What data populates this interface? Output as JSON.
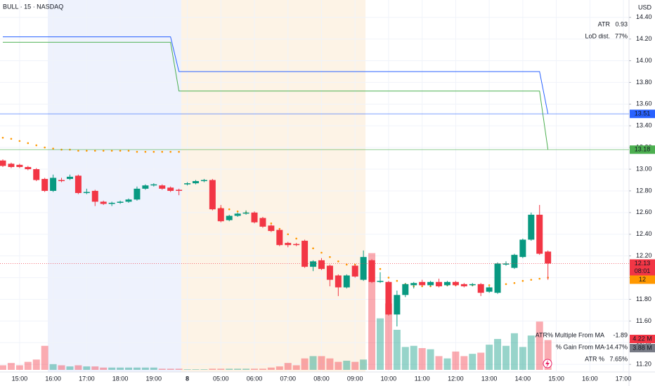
{
  "chart_data": {
    "type": "candlestick",
    "title": "BULL · 15 · NASDAQ",
    "currency": "USD",
    "categories": [
      null,
      null,
      "15:00",
      null,
      null,
      null,
      "16:00",
      null,
      null,
      null,
      "17:00",
      null,
      null,
      null,
      "18:00",
      null,
      null,
      null,
      "19:00",
      null,
      null,
      null,
      "8",
      null,
      null,
      null,
      "05:00",
      null,
      null,
      null,
      "06:00",
      null,
      null,
      null,
      "07:00",
      null,
      null,
      null,
      "08:00",
      null,
      null,
      null,
      "09:00",
      null,
      null,
      null,
      "10:00",
      null,
      null,
      null,
      "11:00",
      null,
      null,
      null,
      "12:00",
      null,
      null,
      null,
      "13:00",
      null,
      null,
      null,
      "14:00",
      null,
      null,
      null,
      "15:00",
      null,
      null,
      null,
      "16:00",
      null,
      null,
      null,
      "17:00"
    ],
    "open": [
      13.08,
      13.05,
      13.04,
      13.02,
      13.0,
      12.91,
      12.8,
      12.9,
      12.91,
      12.94,
      12.78,
      12.8,
      12.7,
      12.68,
      12.69,
      12.7,
      12.72,
      12.82,
      12.85,
      12.85,
      12.83,
      12.81,
      12.86,
      12.87,
      12.89,
      12.9,
      12.64,
      12.53,
      12.57,
      12.59,
      12.6,
      12.55,
      12.48,
      12.44,
      12.32,
      12.31,
      12.34,
      12.1,
      12.16,
      12.11,
      12.02,
      11.91,
      12.11,
      11.98,
      12.16,
      11.96,
      11.96,
      11.66,
      11.84,
      11.93,
      11.96,
      11.93,
      11.96,
      11.93,
      11.96,
      11.94,
      11.93,
      11.94,
      11.87,
      11.86,
      12.12,
      12.09,
      12.19,
      12.35,
      12.58,
      12.24,
      null,
      null,
      null,
      null,
      null,
      null,
      null,
      null,
      null
    ],
    "high": [
      13.09,
      13.06,
      13.05,
      13.03,
      13.01,
      12.92,
      12.95,
      12.92,
      12.95,
      12.95,
      12.82,
      12.81,
      12.71,
      12.7,
      12.71,
      12.73,
      12.84,
      12.86,
      12.87,
      12.86,
      12.84,
      12.82,
      12.88,
      12.9,
      12.91,
      12.91,
      12.67,
      12.58,
      12.6,
      12.62,
      12.61,
      12.56,
      12.49,
      12.45,
      12.33,
      12.32,
      12.35,
      12.16,
      12.18,
      12.12,
      12.03,
      12.03,
      12.12,
      12.25,
      12.17,
      12.05,
      11.97,
      11.88,
      11.95,
      11.96,
      11.98,
      11.97,
      11.99,
      11.97,
      11.97,
      11.95,
      11.95,
      11.95,
      11.92,
      12.14,
      12.15,
      12.22,
      12.36,
      12.6,
      12.67,
      12.25,
      null,
      null,
      null,
      null,
      null,
      null,
      null,
      null,
      null
    ],
    "low": [
      13.02,
      13.01,
      13.01,
      12.99,
      12.89,
      12.79,
      12.79,
      12.88,
      12.9,
      12.77,
      12.77,
      12.66,
      12.67,
      12.66,
      12.68,
      12.69,
      12.71,
      12.81,
      12.84,
      12.81,
      12.79,
      12.76,
      12.85,
      12.86,
      12.88,
      12.62,
      12.51,
      12.52,
      12.56,
      12.58,
      12.5,
      12.46,
      12.42,
      12.29,
      12.28,
      12.29,
      12.09,
      12.06,
      12.07,
      11.92,
      11.83,
      11.9,
      12.0,
      11.97,
      11.95,
      11.95,
      11.65,
      11.55,
      11.82,
      11.9,
      11.92,
      11.92,
      11.91,
      11.92,
      11.92,
      11.91,
      11.92,
      11.83,
      11.86,
      11.85,
      12.11,
      12.08,
      12.18,
      12.34,
      12.21,
      11.98,
      null,
      null,
      null,
      null,
      null,
      null,
      null,
      null,
      null
    ],
    "close": [
      13.03,
      13.02,
      13.02,
      13.0,
      12.9,
      12.8,
      12.92,
      12.89,
      12.93,
      12.78,
      12.79,
      12.7,
      12.68,
      12.69,
      12.7,
      12.72,
      12.82,
      12.85,
      12.86,
      12.82,
      12.8,
      12.8,
      12.87,
      12.89,
      12.9,
      12.63,
      12.52,
      12.57,
      12.59,
      12.6,
      12.51,
      12.47,
      12.43,
      12.3,
      12.3,
      12.3,
      12.1,
      12.15,
      12.08,
      11.98,
      11.91,
      12.02,
      12.01,
      12.19,
      11.96,
      11.97,
      11.66,
      11.84,
      11.94,
      11.95,
      11.93,
      11.96,
      11.92,
      11.96,
      11.93,
      11.92,
      11.94,
      11.86,
      11.91,
      12.13,
      12.13,
      12.21,
      12.35,
      12.58,
      12.22,
      12.13,
      null,
      null,
      null,
      null,
      null,
      null,
      null,
      null,
      null
    ],
    "volume": [
      0.4,
      0.6,
      0.4,
      0.7,
      0.9,
      2.1,
      0.5,
      0.4,
      0.3,
      0.4,
      0.3,
      0.3,
      0.2,
      0.2,
      0.2,
      0.2,
      0.2,
      0.2,
      0.2,
      0.1,
      0.1,
      0.1,
      0.05,
      0.05,
      0.05,
      0.1,
      0.1,
      0.1,
      0.1,
      0.1,
      0.1,
      0.1,
      0.2,
      0.3,
      0.6,
      0.4,
      1.0,
      1.2,
      1.2,
      1.0,
      0.7,
      0.8,
      0.7,
      0.9,
      10.2,
      4.5,
      5.8,
      3.5,
      2.0,
      2.1,
      1.9,
      1.8,
      1.2,
      1.0,
      1.6,
      1.2,
      1.4,
      1.5,
      2.2,
      2.7,
      2.1,
      3.2,
      2.0,
      3.0,
      4.22,
      2.6,
      null,
      null,
      null,
      null,
      null,
      null,
      null,
      null,
      null
    ],
    "volume_ylim": [
      0,
      32.5
    ],
    "up_color": "#089981",
    "down_color": "#f23645",
    "overlays": [
      {
        "style": "line",
        "color": "#2962ff",
        "values": [
          14.22,
          14.22,
          14.22,
          14.22,
          14.22,
          14.22,
          14.22,
          14.22,
          14.22,
          14.22,
          14.22,
          14.22,
          14.22,
          14.22,
          14.22,
          14.22,
          14.22,
          14.22,
          14.22,
          14.22,
          14.22,
          13.9,
          13.9,
          13.9,
          13.9,
          13.9,
          13.9,
          13.9,
          13.9,
          13.9,
          13.9,
          13.9,
          13.9,
          13.9,
          13.9,
          13.9,
          13.9,
          13.9,
          13.9,
          13.9,
          13.9,
          13.9,
          13.9,
          13.9,
          13.9,
          13.9,
          13.9,
          13.9,
          13.9,
          13.9,
          13.9,
          13.9,
          13.9,
          13.9,
          13.9,
          13.9,
          13.9,
          13.9,
          13.9,
          13.9,
          13.9,
          13.9,
          13.9,
          13.9,
          13.9,
          13.51,
          null,
          null,
          null,
          null,
          null,
          null,
          null,
          null,
          null
        ]
      },
      {
        "style": "line",
        "color": "#4caf50",
        "values": [
          14.17,
          14.17,
          14.17,
          14.17,
          14.17,
          14.17,
          14.17,
          14.17,
          14.17,
          14.17,
          14.17,
          14.17,
          14.17,
          14.17,
          14.17,
          14.17,
          14.17,
          14.17,
          14.17,
          14.17,
          14.17,
          13.72,
          13.72,
          13.72,
          13.72,
          13.72,
          13.72,
          13.72,
          13.72,
          13.72,
          13.72,
          13.72,
          13.72,
          13.72,
          13.72,
          13.72,
          13.72,
          13.72,
          13.72,
          13.72,
          13.72,
          13.72,
          13.72,
          13.72,
          13.72,
          13.72,
          13.72,
          13.72,
          13.72,
          13.72,
          13.72,
          13.72,
          13.72,
          13.72,
          13.72,
          13.72,
          13.72,
          13.72,
          13.72,
          13.72,
          13.72,
          13.72,
          13.72,
          13.72,
          13.72,
          13.18,
          null,
          null,
          null,
          null,
          null,
          null,
          null,
          null,
          null
        ]
      },
      {
        "style": "dots",
        "color": "#ff9800",
        "values": [
          13.29,
          13.28,
          13.26,
          13.24,
          13.22,
          13.2,
          13.19,
          13.18,
          13.18,
          13.17,
          13.17,
          13.17,
          13.17,
          13.17,
          13.17,
          13.17,
          13.16,
          13.16,
          13.16,
          13.16,
          13.16,
          13.16,
          null,
          null,
          null,
          12.66,
          12.64,
          12.63,
          12.61,
          12.6,
          12.56,
          12.53,
          12.5,
          12.45,
          12.4,
          12.36,
          12.3,
          12.27,
          12.23,
          12.19,
          12.15,
          12.12,
          12.12,
          12.11,
          12.1,
          12.08,
          12.0,
          11.97,
          11.94,
          11.92,
          11.92,
          11.92,
          11.93,
          11.93,
          11.93,
          11.93,
          11.93,
          11.93,
          11.93,
          11.94,
          11.94,
          11.95,
          11.97,
          11.98,
          11.99,
          12.0,
          null,
          null,
          null,
          null,
          null,
          null,
          null,
          null,
          null
        ]
      }
    ],
    "ylim": [
      11.13,
      14.56
    ],
    "yticks": [
      {
        "value": 11.2,
        "label": "11.20"
      },
      {
        "value": 11.4,
        "label": "11.40"
      },
      {
        "value": 11.6,
        "label": "11.60"
      },
      {
        "value": 11.8,
        "label": "11.80"
      },
      {
        "value": 12,
        "label": "12.00"
      },
      {
        "value": 12.2,
        "label": "12.20"
      },
      {
        "value": 12.4,
        "label": "12.40"
      },
      {
        "value": 12.6,
        "label": "12.60"
      },
      {
        "value": 12.8,
        "label": "12.80"
      },
      {
        "value": 13,
        "label": "13.00"
      },
      {
        "value": 13.2,
        "label": "13.20"
      },
      {
        "value": 13.4,
        "label": "13.40"
      },
      {
        "value": 13.6,
        "label": "13.60"
      },
      {
        "value": 13.8,
        "label": "13.80"
      },
      {
        "value": 14,
        "label": "14.00"
      },
      {
        "value": 14.2,
        "label": "14.20"
      },
      {
        "value": 14.4,
        "label": "14.40"
      }
    ],
    "grid": true,
    "countdown": "08:01",
    "volume_label": "4.22 M",
    "volume_ma_label": "3.88 M",
    "info_top": [
      {
        "name": "ATR",
        "value": "0.93"
      },
      {
        "name": "LoD dist.",
        "value": "77%"
      }
    ],
    "info_bottom": [
      {
        "name": "ATR% Multiple From MA",
        "value": "-1.89"
      },
      {
        "name": "% Gain From MA",
        "value": "-14.47%"
      },
      {
        "name": "ATR %",
        "value": "7.65%"
      }
    ]
  }
}
